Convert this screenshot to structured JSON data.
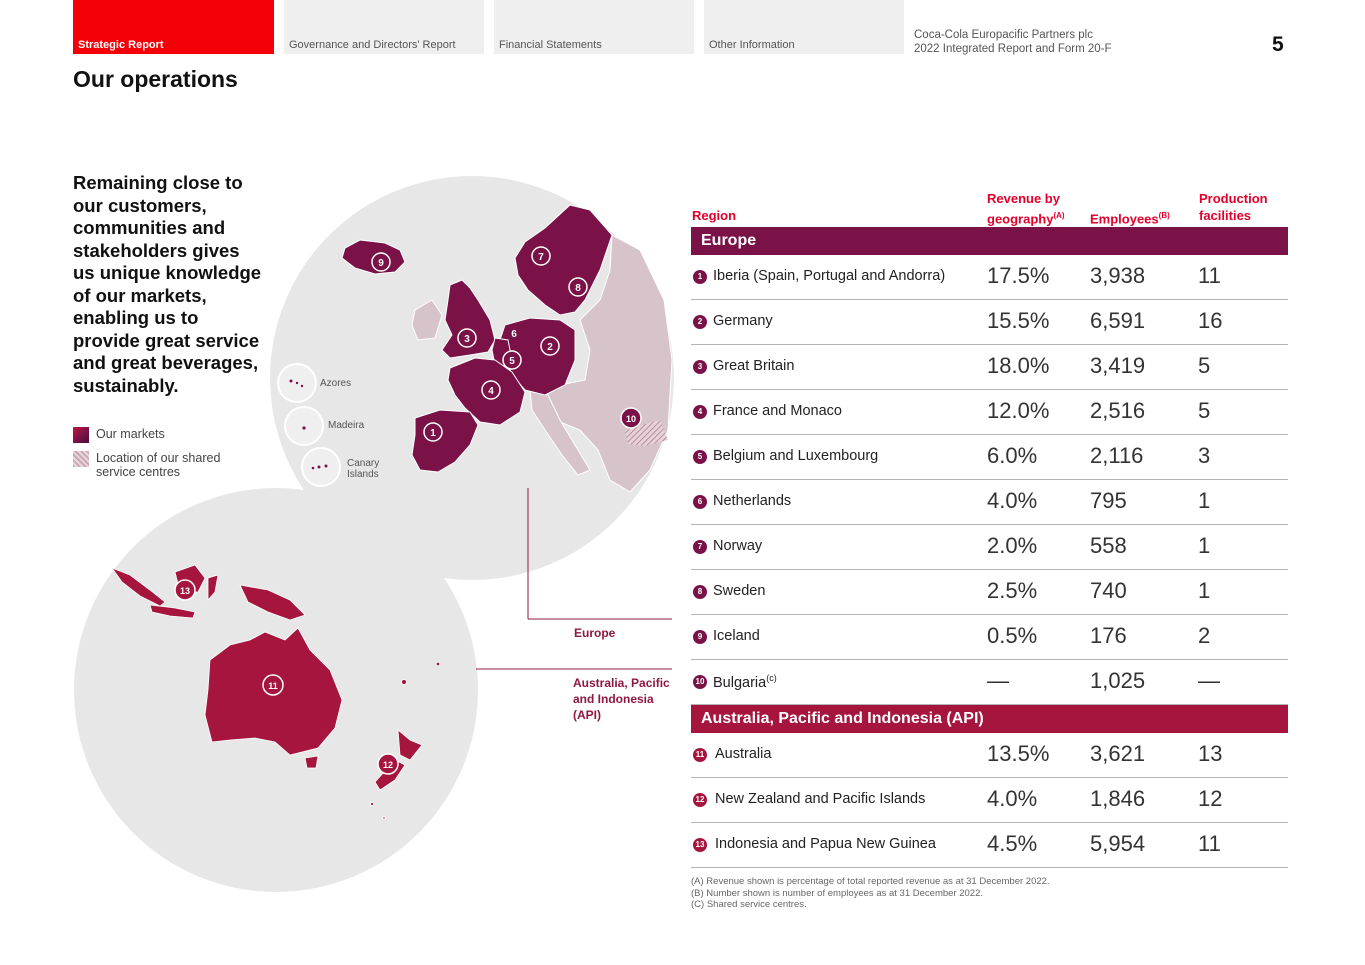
{
  "nav": {
    "tabs": [
      {
        "label": "Strategic Report"
      },
      {
        "label": "Governance and Directors' Report"
      },
      {
        "label": "Financial Statements"
      },
      {
        "label": "Other Information"
      }
    ],
    "publication_line1": "Coca-Cola Europacific Partners plc",
    "publication_line2": "2022 Integrated Report and Form 20-F",
    "page_number": "5"
  },
  "page_title": "Our operations",
  "intro_text": "Remaining close to our customers, communities and stakeholders gives us unique knowledge of our markets, enabling us to provide great service and great beverages, sustainably.",
  "legend": {
    "markets": "Our markets",
    "shared": "Location of our shared service centres"
  },
  "map": {
    "europe_label": "Europe",
    "api_label": "Australia, Pacific and Indonesia (API)",
    "islands": {
      "azores": "Azores",
      "madeira": "Madeira",
      "canary_1": "Canary",
      "canary_2": "Islands"
    }
  },
  "table": {
    "headers": {
      "region": "Region",
      "revenue_1": "Revenue by",
      "revenue_2": "geography",
      "revenue_note": "(A)",
      "employees": "Employees",
      "employees_note": "(B)",
      "production_1": "Production",
      "production_2": "facilities"
    },
    "europe_heading": "Europe",
    "api_heading": "Australia, Pacific and Indonesia (API)",
    "europe_rows": [
      {
        "num": "1",
        "region": "Iberia (Spain, Portugal and Andorra)",
        "revenue": "17.5%",
        "employees": "3,938",
        "production": "11"
      },
      {
        "num": "2",
        "region": "Germany",
        "revenue": "15.5%",
        "employees": "6,591",
        "production": "16"
      },
      {
        "num": "3",
        "region": "Great Britain",
        "revenue": "18.0%",
        "employees": "3,419",
        "production": "5"
      },
      {
        "num": "4",
        "region": "France and Monaco",
        "revenue": "12.0%",
        "employees": "2,516",
        "production": "5"
      },
      {
        "num": "5",
        "region": "Belgium and Luxembourg",
        "revenue": "6.0%",
        "employees": "2,116",
        "production": "3"
      },
      {
        "num": "6",
        "region": "Netherlands",
        "revenue": "4.0%",
        "employees": "795",
        "production": "1"
      },
      {
        "num": "7",
        "region": "Norway",
        "revenue": "2.0%",
        "employees": "558",
        "production": "1"
      },
      {
        "num": "8",
        "region": "Sweden",
        "revenue": "2.5%",
        "employees": "740",
        "production": "1"
      },
      {
        "num": "9",
        "region": "Iceland",
        "revenue": "0.5%",
        "employees": "176",
        "production": "2"
      },
      {
        "num": "10",
        "region": "Bulgaria",
        "region_note": "(c)",
        "revenue": "—",
        "employees": "1,025",
        "production": "—"
      }
    ],
    "api_rows": [
      {
        "num": "11",
        "region": "Australia",
        "revenue": "13.5%",
        "employees": "3,621",
        "production": "13"
      },
      {
        "num": "12",
        "region": "New Zealand and Pacific Islands",
        "revenue": "4.0%",
        "employees": "1,846",
        "production": "12"
      },
      {
        "num": "13",
        "region": "Indonesia and Papua New Guinea",
        "revenue": "4.5%",
        "employees": "5,954",
        "production": "11"
      }
    ]
  },
  "footnotes": [
    "(A) Revenue shown is percentage of total reported revenue as at 31 December 2022.",
    "(B) Number shown is number of employees as at 31 December 2022.",
    "(C) Shared service centres."
  ],
  "colors": {
    "red": "#f40009",
    "europe": "#7a1147",
    "api": "#a6153d",
    "shared": "#c9a7b3"
  }
}
